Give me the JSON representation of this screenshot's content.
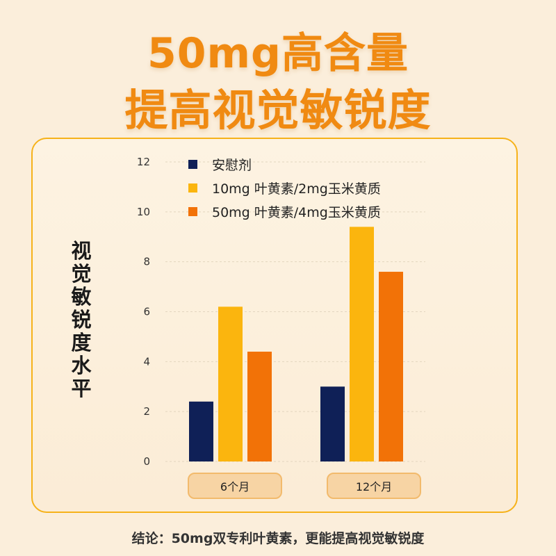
{
  "title": {
    "line1": "50mg高含量",
    "line2": "提高视觉敏锐度"
  },
  "chart_data": {
    "type": "bar",
    "ylabel": "视觉敏锐度水平",
    "xlabel": "",
    "ylim": [
      0,
      12
    ],
    "yticks": [
      0,
      2,
      4,
      6,
      8,
      10,
      12
    ],
    "grid": true,
    "legend_position": "top",
    "categories": [
      "6个月",
      "12个月"
    ],
    "series": [
      {
        "name": "安慰剂",
        "color": "#0f2057",
        "values": [
          2.4,
          3.0
        ]
      },
      {
        "name": "10mg 叶黄素/2mg玉米黄质",
        "color": "#fbb50e",
        "values": [
          6.2,
          9.4
        ]
      },
      {
        "name": "50mg 叶黄素/4mg玉米黄质",
        "color": "#f27207",
        "values": [
          4.4,
          7.6
        ]
      }
    ]
  },
  "footer": {
    "conclusion": "结论：50mg双专利叶黄素，更能提高视觉敏锐度"
  }
}
